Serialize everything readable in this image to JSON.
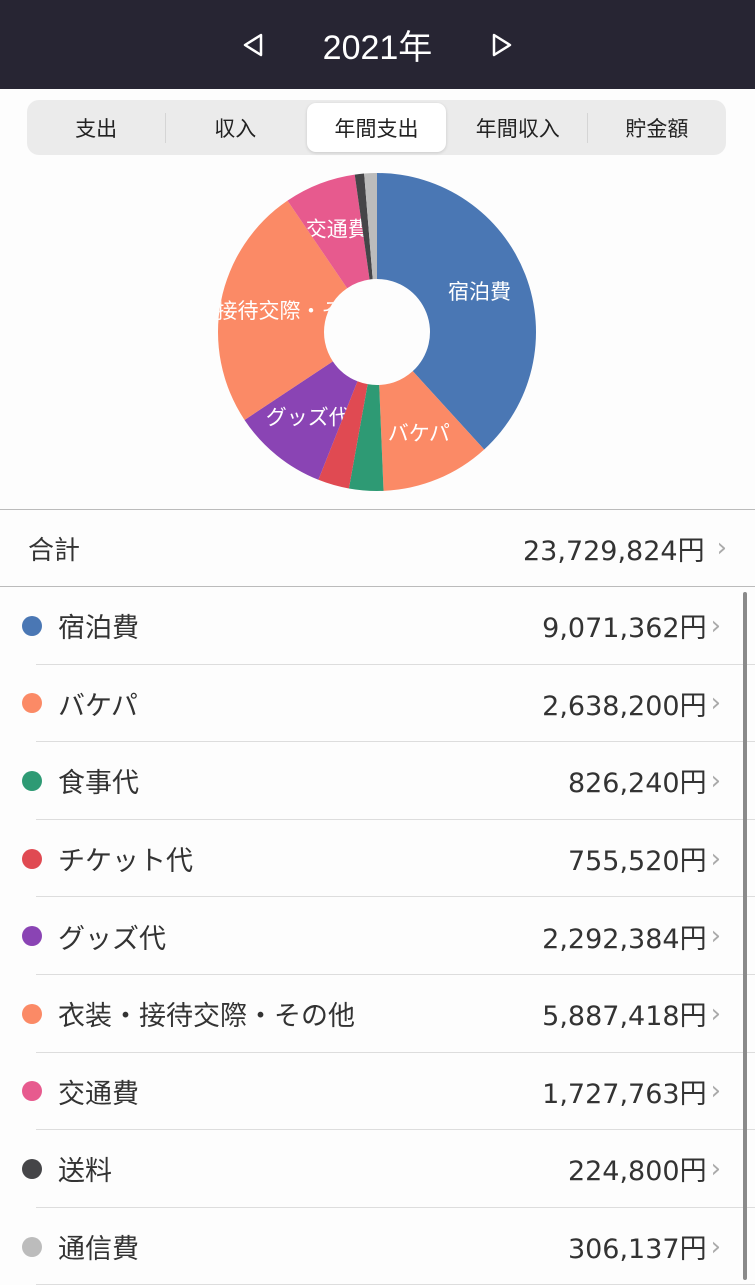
{
  "header": {
    "year": "2021年",
    "prev_icon": "triangle-left-icon",
    "next_icon": "triangle-right-icon"
  },
  "tabs": [
    {
      "label": "支出"
    },
    {
      "label": "収入"
    },
    {
      "label": "年間支出",
      "active": true
    },
    {
      "label": "年間収入"
    },
    {
      "label": "貯金額"
    }
  ],
  "total": {
    "label": "合計",
    "value": "23,729,824円"
  },
  "chart_data": {
    "type": "pie",
    "donut": true,
    "categories": [
      "宿泊費",
      "バケパ",
      "食事代",
      "チケット代",
      "グッズ代",
      "衣装・接待交際・その他",
      "交通費",
      "送料",
      "通信費"
    ],
    "values": [
      9071362,
      2638200,
      826240,
      755520,
      2292384,
      5887418,
      1727763,
      224800,
      306137
    ],
    "colors": [
      "#4a77b4",
      "#fb8a66",
      "#2e9a74",
      "#e04a52",
      "#8a44b4",
      "#fb8a66",
      "#e75a8e",
      "#454548",
      "#bcbcbc"
    ]
  },
  "items": [
    {
      "name": "宿泊費",
      "value": "9,071,362円",
      "color": "#4a77b4"
    },
    {
      "name": "バケパ",
      "value": "2,638,200円",
      "color": "#fb8a66"
    },
    {
      "name": "食事代",
      "value": "826,240円",
      "color": "#2e9a74"
    },
    {
      "name": "チケット代",
      "value": "755,520円",
      "color": "#e04a52"
    },
    {
      "name": "グッズ代",
      "value": "2,292,384円",
      "color": "#8a44b4"
    },
    {
      "name": "衣装・接待交際・その他",
      "value": "5,887,418円",
      "color": "#fb8a66"
    },
    {
      "name": "交通費",
      "value": "1,727,763円",
      "color": "#e75a8e"
    },
    {
      "name": "送料",
      "value": "224,800円",
      "color": "#454548"
    },
    {
      "name": "通信費",
      "value": "306,137円",
      "color": "#bcbcbc"
    }
  ],
  "chevron": "›"
}
